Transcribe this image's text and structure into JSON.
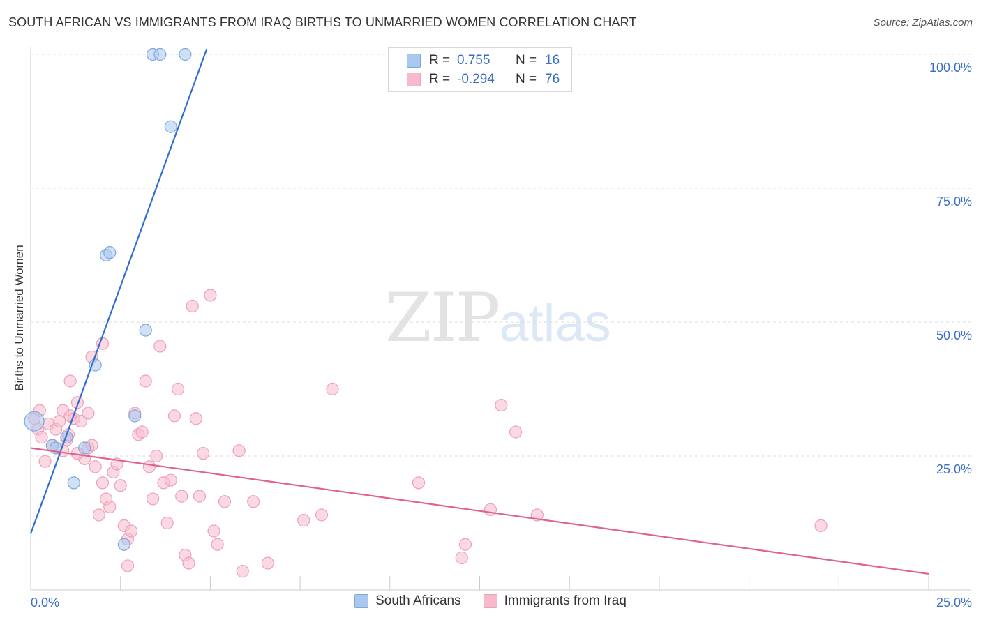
{
  "header": {
    "title": "SOUTH AFRICAN VS IMMIGRANTS FROM IRAQ BIRTHS TO UNMARRIED WOMEN CORRELATION CHART",
    "source": "Source: ZipAtlas.com"
  },
  "watermark": {
    "zip": "ZIP",
    "atlas": "atlas"
  },
  "legend": {
    "rows": [
      {
        "r_label": "R =",
        "r_value": "0.755",
        "n_label": "N =",
        "n_value": "16",
        "color": "#a9c8ef"
      },
      {
        "r_label": "R =",
        "r_value": "-0.294",
        "n_label": "N =",
        "n_value": "76",
        "color": "#f7b9cc"
      }
    ]
  },
  "bottom_legend": {
    "items": [
      {
        "label": "South Africans",
        "color": "#a9c8ef"
      },
      {
        "label": "Immigrants from Iraq",
        "color": "#f7b9cc"
      }
    ]
  },
  "chart_data": {
    "type": "scatter",
    "xlabel": "",
    "ylabel": "Births to Unmarried Women",
    "xlim": [
      0,
      25
    ],
    "ylim": [
      0,
      105
    ],
    "x_tick_labels": [
      "0.0%",
      "25.0%"
    ],
    "y_ticks": [
      25,
      50,
      75,
      100
    ],
    "y_tick_labels": [
      "25.0%",
      "50.0%",
      "75.0%",
      "100.0%"
    ],
    "grid": "horizontal dashed",
    "legend_position": "top-center",
    "series": [
      {
        "name": "South Africans",
        "color": "#a9c8ef",
        "stroke": "#7ea8dc",
        "line_color": "#2f6fce",
        "trend": {
          "x": [
            0,
            4.9
          ],
          "y": [
            10.5,
            101
          ]
        },
        "points": [
          {
            "x": 0.1,
            "y": 31.5,
            "r": 14
          },
          {
            "x": 0.6,
            "y": 27
          },
          {
            "x": 0.7,
            "y": 26.5
          },
          {
            "x": 1.0,
            "y": 28.5
          },
          {
            "x": 1.2,
            "y": 20
          },
          {
            "x": 1.5,
            "y": 26.5
          },
          {
            "x": 1.8,
            "y": 42
          },
          {
            "x": 2.1,
            "y": 62.5
          },
          {
            "x": 2.2,
            "y": 63
          },
          {
            "x": 2.6,
            "y": 8.5
          },
          {
            "x": 2.9,
            "y": 32.5
          },
          {
            "x": 3.2,
            "y": 48.5
          },
          {
            "x": 3.4,
            "y": 100
          },
          {
            "x": 3.6,
            "y": 100
          },
          {
            "x": 3.9,
            "y": 86.5
          },
          {
            "x": 4.3,
            "y": 100
          }
        ]
      },
      {
        "name": "Immigrants from Iraq",
        "color": "#f7b9cc",
        "stroke": "#eea0b9",
        "line_color": "#e0638f",
        "trend": {
          "x": [
            0,
            25
          ],
          "y": [
            26.5,
            3
          ]
        },
        "points": [
          {
            "x": 0.1,
            "y": 32
          },
          {
            "x": 0.2,
            "y": 30
          },
          {
            "x": 0.25,
            "y": 33.5
          },
          {
            "x": 0.3,
            "y": 28.5
          },
          {
            "x": 0.4,
            "y": 24
          },
          {
            "x": 0.5,
            "y": 31
          },
          {
            "x": 0.6,
            "y": 27
          },
          {
            "x": 0.7,
            "y": 30
          },
          {
            "x": 0.8,
            "y": 31.5
          },
          {
            "x": 0.9,
            "y": 33.5
          },
          {
            "x": 1.0,
            "y": 28
          },
          {
            "x": 1.05,
            "y": 29
          },
          {
            "x": 1.1,
            "y": 32.5
          },
          {
            "x": 1.2,
            "y": 32
          },
          {
            "x": 1.3,
            "y": 35
          },
          {
            "x": 1.1,
            "y": 39
          },
          {
            "x": 1.4,
            "y": 31.5
          },
          {
            "x": 1.5,
            "y": 24.5
          },
          {
            "x": 1.6,
            "y": 26.5
          },
          {
            "x": 1.7,
            "y": 27
          },
          {
            "x": 1.8,
            "y": 23
          },
          {
            "x": 1.9,
            "y": 14
          },
          {
            "x": 2.0,
            "y": 20
          },
          {
            "x": 2.1,
            "y": 17
          },
          {
            "x": 2.2,
            "y": 15.5
          },
          {
            "x": 1.6,
            "y": 33
          },
          {
            "x": 1.7,
            "y": 43.5
          },
          {
            "x": 2.0,
            "y": 46
          },
          {
            "x": 2.3,
            "y": 22
          },
          {
            "x": 2.4,
            "y": 23.5
          },
          {
            "x": 2.5,
            "y": 19.5
          },
          {
            "x": 2.6,
            "y": 12
          },
          {
            "x": 2.7,
            "y": 9.5
          },
          {
            "x": 2.8,
            "y": 11
          },
          {
            "x": 2.9,
            "y": 33
          },
          {
            "x": 3.0,
            "y": 29
          },
          {
            "x": 3.1,
            "y": 29.5
          },
          {
            "x": 3.2,
            "y": 39
          },
          {
            "x": 3.3,
            "y": 23
          },
          {
            "x": 3.4,
            "y": 17
          },
          {
            "x": 3.5,
            "y": 25
          },
          {
            "x": 3.6,
            "y": 45.5
          },
          {
            "x": 3.7,
            "y": 20
          },
          {
            "x": 3.8,
            "y": 12.5
          },
          {
            "x": 3.9,
            "y": 20.5
          },
          {
            "x": 4.0,
            "y": 32.5
          },
          {
            "x": 4.1,
            "y": 37.5
          },
          {
            "x": 4.2,
            "y": 17.5
          },
          {
            "x": 4.3,
            "y": 6.5
          },
          {
            "x": 2.7,
            "y": 4.5
          },
          {
            "x": 4.4,
            "y": 5
          },
          {
            "x": 4.5,
            "y": 53
          },
          {
            "x": 4.6,
            "y": 32
          },
          {
            "x": 4.7,
            "y": 17.5
          },
          {
            "x": 4.8,
            "y": 25.5
          },
          {
            "x": 5.0,
            "y": 55
          },
          {
            "x": 5.1,
            "y": 11
          },
          {
            "x": 5.2,
            "y": 8.5
          },
          {
            "x": 5.4,
            "y": 16.5
          },
          {
            "x": 5.8,
            "y": 26
          },
          {
            "x": 5.9,
            "y": 3.5
          },
          {
            "x": 6.2,
            "y": 16.5
          },
          {
            "x": 6.6,
            "y": 5
          },
          {
            "x": 7.6,
            "y": 13
          },
          {
            "x": 8.1,
            "y": 14
          },
          {
            "x": 8.4,
            "y": 37.5
          },
          {
            "x": 10.8,
            "y": 20
          },
          {
            "x": 12.0,
            "y": 6
          },
          {
            "x": 12.1,
            "y": 8.5
          },
          {
            "x": 12.8,
            "y": 15
          },
          {
            "x": 13.1,
            "y": 34.5
          },
          {
            "x": 13.5,
            "y": 29.5
          },
          {
            "x": 14.1,
            "y": 14
          },
          {
            "x": 22.0,
            "y": 12
          },
          {
            "x": 1.3,
            "y": 25.5
          },
          {
            "x": 0.9,
            "y": 26
          }
        ]
      }
    ]
  }
}
